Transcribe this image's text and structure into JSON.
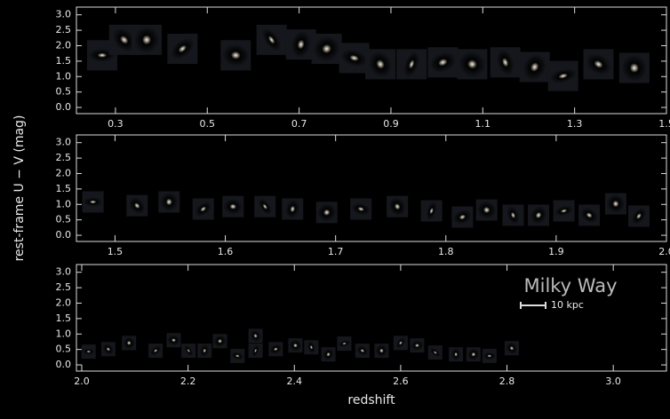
{
  "chart_data": [
    {
      "type": "scatter",
      "color": "#e6c48a",
      "x": [
        0.271,
        0.319,
        0.368,
        0.446,
        0.562,
        0.64,
        0.704,
        0.76,
        0.82,
        0.877,
        0.945,
        1.013,
        1.077,
        1.149,
        1.213,
        1.275,
        1.352,
        1.43
      ],
      "values": [
        1.69,
        2.19,
        2.19,
        1.9,
        1.69,
        2.19,
        2.04,
        1.9,
        1.6,
        1.4,
        1.4,
        1.46,
        1.4,
        1.46,
        1.31,
        1.02,
        1.4,
        1.28
      ],
      "xlim": [
        0.215,
        1.5
      ],
      "ylim": [
        -0.2,
        3.25
      ],
      "xticks": [
        0.3,
        0.5,
        0.7,
        0.9,
        1.1,
        1.3,
        1.5
      ],
      "yticks": [
        {
          "value": 0,
          "label": "0.0"
        },
        0.5,
        {
          "value": 1,
          "label": "1.0"
        },
        1.5,
        {
          "value": 2,
          "label": "2.0"
        },
        2.5,
        {
          "value": 3,
          "label": "3.0"
        }
      ]
    },
    {
      "type": "scatter",
      "color": "#e8c27c",
      "ylabel": "rest-frame U − V (mag)",
      "x": [
        1.48,
        1.52,
        1.549,
        1.58,
        1.607,
        1.636,
        1.661,
        1.692,
        1.723,
        1.756,
        1.787,
        1.815,
        1.837,
        1.861,
        1.884,
        1.907,
        1.93,
        1.954,
        1.975
      ],
      "values": [
        1.08,
        0.96,
        1.08,
        0.85,
        0.93,
        0.93,
        0.85,
        0.74,
        0.85,
        0.93,
        0.79,
        0.59,
        0.82,
        0.65,
        0.65,
        0.79,
        0.65,
        1.02,
        0.62
      ],
      "xlim": [
        1.465,
        2.0
      ],
      "ylim": [
        -0.2,
        3.25
      ],
      "xticks": [
        1.5,
        1.6,
        1.7,
        1.8,
        1.9,
        {
          "value": 2,
          "label": "2.0"
        }
      ],
      "yticks": [
        {
          "value": 0,
          "label": "0.0"
        },
        0.5,
        {
          "value": 1,
          "label": "1.0"
        },
        1.5,
        {
          "value": 2,
          "label": "2.0"
        },
        2.5,
        {
          "value": 3,
          "label": "3.0"
        }
      ]
    },
    {
      "type": "scatter",
      "color": "#f0d6a8",
      "xlabel": "redshift",
      "annotations": [
        "Milky Way",
        "10 kpc"
      ],
      "x": [
        2.013,
        2.05,
        2.089,
        2.139,
        2.173,
        2.201,
        2.231,
        2.26,
        2.293,
        2.327,
        2.327,
        2.365,
        2.402,
        2.432,
        2.464,
        2.494,
        2.528,
        2.564,
        2.6,
        2.631,
        2.665,
        2.704,
        2.737,
        2.767,
        2.809
      ],
      "values": [
        0.43,
        0.51,
        0.71,
        0.46,
        0.8,
        0.46,
        0.46,
        0.77,
        0.29,
        0.94,
        0.46,
        0.51,
        0.63,
        0.57,
        0.34,
        0.69,
        0.46,
        0.46,
        0.71,
        0.63,
        0.4,
        0.34,
        0.34,
        0.29,
        0.54
      ],
      "xlim": [
        1.99,
        3.1
      ],
      "ylim": [
        -0.2,
        3.25
      ],
      "xticks": [
        {
          "value": 2,
          "label": "2.0"
        },
        2.2,
        2.4,
        2.6,
        2.8,
        {
          "value": 3,
          "label": "3.0"
        }
      ],
      "yticks": [
        {
          "value": 0,
          "label": "0.0"
        },
        0.5,
        {
          "value": 1,
          "label": "1.0"
        },
        1.5,
        {
          "value": 2,
          "label": "2.0"
        },
        2.5,
        {
          "value": 3,
          "label": "3.0"
        }
      ]
    }
  ]
}
